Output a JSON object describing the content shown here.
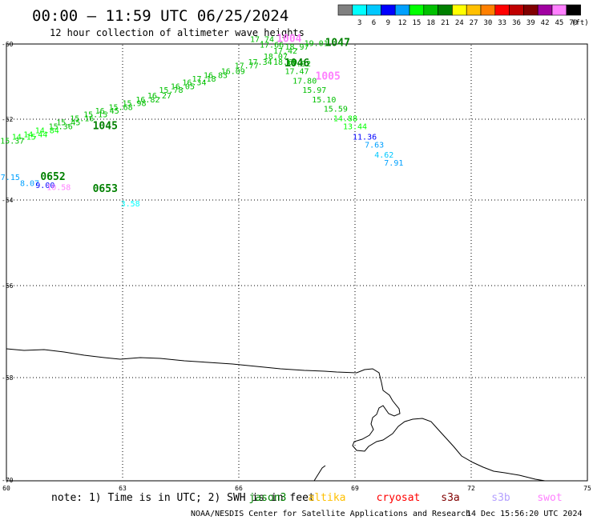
{
  "header": {
    "title": "00:00 – 11:59 UTC 06/25/2024",
    "subtitle": "12 hour collection of altimeter wave heights"
  },
  "legend": {
    "unit": "(ft)",
    "swatches": [
      {
        "label": "",
        "color": "#808080"
      },
      {
        "label": "3",
        "color": "#00ffff"
      },
      {
        "label": "6",
        "color": "#00c8ff"
      },
      {
        "label": "9",
        "color": "#0000ff"
      },
      {
        "label": "12",
        "color": "#00a0ff"
      },
      {
        "label": "15",
        "color": "#00ff00"
      },
      {
        "label": "18",
        "color": "#00c000"
      },
      {
        "label": "21",
        "color": "#008000"
      },
      {
        "label": "24",
        "color": "#ffff00"
      },
      {
        "label": "27",
        "color": "#ffc000"
      },
      {
        "label": "30",
        "color": "#ff8000"
      },
      {
        "label": "33",
        "color": "#ff0000"
      },
      {
        "label": "36",
        "color": "#c00000"
      },
      {
        "label": "39",
        "color": "#800000"
      },
      {
        "label": "42",
        "color": "#a000a0"
      },
      {
        "label": "45",
        "color": "#ff80ff"
      },
      {
        "label": "70",
        "color": "#000000"
      }
    ]
  },
  "axes": {
    "lat_labels": [
      "-60",
      "-62",
      "-64",
      "-66",
      "-68",
      "-70"
    ],
    "lon_labels": [
      "60",
      "63",
      "66",
      "69",
      "72",
      "75"
    ]
  },
  "map_data": {
    "wave_heights": [
      {
        "v": "17.74",
        "lon": 66.6,
        "lat": -59.95,
        "color": "#00c000"
      },
      {
        "v": "17.66",
        "lon": 66.85,
        "lat": -60.1,
        "color": "#00c000"
      },
      {
        "v": "17.42",
        "lon": 67.2,
        "lat": -60.25,
        "color": "#00c000"
      },
      {
        "v": "18.97",
        "lon": 67.5,
        "lat": -60.15,
        "color": "#00c000"
      },
      {
        "v": "19.01",
        "lon": 68.0,
        "lat": -60.05,
        "color": "#00c000"
      },
      {
        "v": "18.07",
        "lon": 66.95,
        "lat": -60.4,
        "color": "#00c000"
      },
      {
        "v": "17.34",
        "lon": 66.55,
        "lat": -60.55,
        "color": "#00c000"
      },
      {
        "v": "17.77",
        "lon": 66.2,
        "lat": -60.65,
        "color": "#00c000"
      },
      {
        "v": "16.09",
        "lon": 65.85,
        "lat": -60.8,
        "color": "#00c000"
      },
      {
        "v": "16.83",
        "lon": 65.4,
        "lat": -60.9,
        "color": "#00c000"
      },
      {
        "v": "17.18",
        "lon": 65.1,
        "lat": -61.0,
        "color": "#00c000"
      },
      {
        "v": "16.34",
        "lon": 64.85,
        "lat": -61.1,
        "color": "#00c000"
      },
      {
        "v": "16.05",
        "lon": 64.55,
        "lat": -61.2,
        "color": "#00c000"
      },
      {
        "v": "15.78",
        "lon": 64.25,
        "lat": -61.3,
        "color": "#00c000"
      },
      {
        "v": "16.27",
        "lon": 63.95,
        "lat": -61.45,
        "color": "#00c000"
      },
      {
        "v": "16.82",
        "lon": 63.65,
        "lat": -61.55,
        "color": "#00c000"
      },
      {
        "v": "15.98",
        "lon": 63.3,
        "lat": -61.65,
        "color": "#00c000"
      },
      {
        "v": "15.68",
        "lon": 62.95,
        "lat": -61.75,
        "color": "#00c000"
      },
      {
        "v": "16.45",
        "lon": 62.6,
        "lat": -61.85,
        "color": "#00c000"
      },
      {
        "v": "15.15",
        "lon": 62.3,
        "lat": -61.95,
        "color": "#00c000"
      },
      {
        "v": "15.16",
        "lon": 61.95,
        "lat": -62.05,
        "color": "#00c000"
      },
      {
        "v": "15.45",
        "lon": 61.6,
        "lat": -62.15,
        "color": "#00c000"
      },
      {
        "v": "15.36",
        "lon": 61.4,
        "lat": -62.25,
        "color": "#00c000"
      },
      {
        "v": "14.84",
        "lon": 61.05,
        "lat": -62.35,
        "color": "#00ff00"
      },
      {
        "v": "14.44",
        "lon": 60.75,
        "lat": -62.45,
        "color": "#00ff00"
      },
      {
        "v": "14.15",
        "lon": 60.45,
        "lat": -62.5,
        "color": "#00ff00"
      },
      {
        "v": "15.37",
        "lon": 60.15,
        "lat": -62.6,
        "color": "#00c000"
      },
      {
        "v": "18.60",
        "lon": 67.2,
        "lat": -60.55,
        "color": "#00c000"
      },
      {
        "v": "17.92",
        "lon": 67.55,
        "lat": -60.6,
        "color": "#00c000"
      },
      {
        "v": "17.47",
        "lon": 67.5,
        "lat": -60.8,
        "color": "#00c000"
      },
      {
        "v": "17.80",
        "lon": 67.7,
        "lat": -61.05,
        "color": "#00c000"
      },
      {
        "v": "15.97",
        "lon": 67.95,
        "lat": -61.3,
        "color": "#00c000"
      },
      {
        "v": "15.10",
        "lon": 68.2,
        "lat": -61.55,
        "color": "#00c000"
      },
      {
        "v": "15.59",
        "lon": 68.5,
        "lat": -61.8,
        "color": "#00c000"
      },
      {
        "v": "14.88",
        "lon": 68.75,
        "lat": -62.05,
        "color": "#00ff00"
      },
      {
        "v": "13.44",
        "lon": 69.0,
        "lat": -62.25,
        "color": "#00ff00"
      },
      {
        "v": "11.36",
        "lon": 69.25,
        "lat": -62.5,
        "color": "#0000ff"
      },
      {
        "v": "7.63",
        "lon": 69.5,
        "lat": -62.7,
        "color": "#00a0ff"
      },
      {
        "v": "4.62",
        "lon": 69.75,
        "lat": -62.95,
        "color": "#00c8ff"
      },
      {
        "v": "7.91",
        "lon": 70.0,
        "lat": -63.15,
        "color": "#00a0ff"
      },
      {
        "v": "7.15",
        "lon": 60.1,
        "lat": -63.5,
        "color": "#00a0ff"
      },
      {
        "v": "8.07",
        "lon": 60.6,
        "lat": -63.65,
        "color": "#00a0ff"
      },
      {
        "v": "9.00",
        "lon": 61.0,
        "lat": -63.7,
        "color": "#0000ff"
      },
      {
        "v": "10.58",
        "lon": 61.35,
        "lat": -63.75,
        "color": "#ff80ff"
      },
      {
        "v": "3.58",
        "lon": 63.2,
        "lat": -64.15,
        "color": "#00ffff"
      }
    ],
    "pass_times": [
      {
        "v": "1004",
        "lon": 67.3,
        "lat": -59.95,
        "color": "#ff80ff"
      },
      {
        "v": "1047",
        "lon": 68.55,
        "lat": -60.05,
        "color": "#008000"
      },
      {
        "v": "1046",
        "lon": 67.5,
        "lat": -60.6,
        "color": "#008000"
      },
      {
        "v": "1005",
        "lon": 68.3,
        "lat": -60.95,
        "color": "#ff80ff"
      },
      {
        "v": "1045",
        "lon": 62.55,
        "lat": -62.25,
        "color": "#008000"
      },
      {
        "v": "0652",
        "lon": 61.2,
        "lat": -63.5,
        "color": "#008000"
      },
      {
        "v": "0653",
        "lon": 62.55,
        "lat": -63.8,
        "color": "#008000"
      }
    ]
  },
  "footer": {
    "note": "note: 1) Time is in UTC; 2) SWH is in feet",
    "satellites": [
      {
        "name": "jason3",
        "color": "#008000"
      },
      {
        "name": "altika",
        "color": "#ffc000"
      },
      {
        "name": "cryosat",
        "color": "#ff0000"
      },
      {
        "name": "s3a",
        "color": "#800000"
      },
      {
        "name": "s3b",
        "color": "#b4a0ff"
      },
      {
        "name": "swot",
        "color": "#ff80ff"
      }
    ],
    "credit": "NOAA/NESDIS Center for Satellite Applications and Research",
    "timestamp": "14 Dec 15:56:20 UTC 2024"
  }
}
